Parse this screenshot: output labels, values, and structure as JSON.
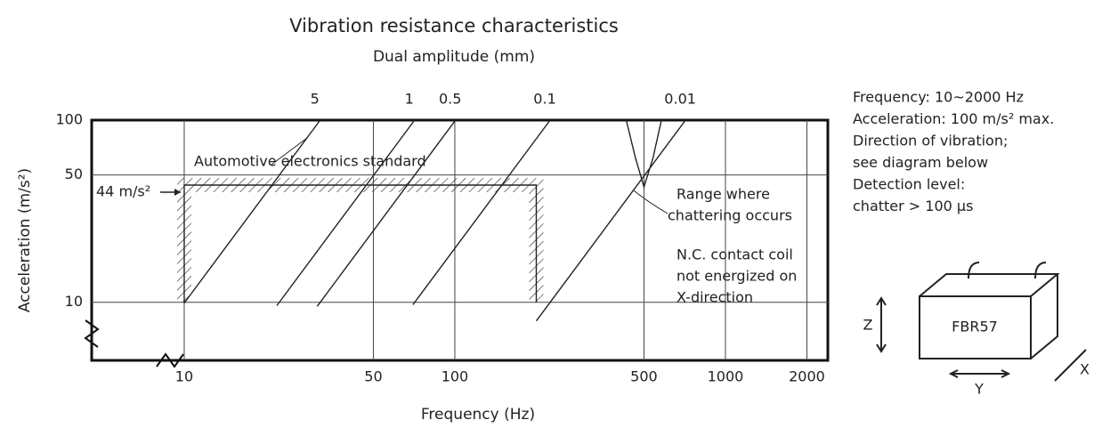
{
  "chart_data": {
    "type": "line",
    "title": "Vibration resistance characteristics",
    "subtitle": "Dual amplitude (mm)",
    "x_label": "Frequency (Hz)",
    "y_label": "Acceleration (m/s²)",
    "log_x": true,
    "log_y": true,
    "grid": true,
    "xlim": [
      4.55,
      2390
    ],
    "ylim": [
      4.8,
      100
    ],
    "xticks": [
      10,
      50,
      100,
      500,
      1000,
      2000
    ],
    "yticks": [
      10,
      50,
      100
    ],
    "series": [
      {
        "name": "5",
        "color": "#222",
        "x": [
          10,
          31.8
        ],
        "values": [
          9.9,
          100
        ]
      },
      {
        "name": "1",
        "color": "#222",
        "x": [
          22,
          71
        ],
        "values": [
          9.6,
          100
        ]
      },
      {
        "name": "0.5",
        "color": "#222",
        "x": [
          31,
          100.6
        ],
        "values": [
          9.5,
          100
        ]
      },
      {
        "name": "0.1",
        "color": "#222",
        "x": [
          70,
          225
        ],
        "values": [
          9.7,
          100
        ]
      },
      {
        "name": "0.01",
        "color": "#222",
        "x": [
          200,
          712
        ],
        "values": [
          7.9,
          100
        ]
      }
    ],
    "standard": {
      "name": "Automotive electronics standard",
      "x": [
        10,
        10,
        200,
        200
      ],
      "values": [
        10,
        44,
        44,
        10
      ],
      "level_label": "44 m/s²"
    },
    "chatter": {
      "x": [
        430,
        465,
        500,
        540,
        580
      ],
      "values": [
        100,
        62,
        43,
        62,
        100
      ],
      "label_lines": [
        "Range where",
        "chattering occurs"
      ]
    },
    "condition_lines": [
      "N.C. contact coil",
      "not energized on",
      "X-direction"
    ],
    "side_notes": [
      "Frequency: 10~2000 Hz",
      "Acceleration: 100 m/s² max.",
      "Direction of vibration;",
      "see diagram below",
      "Detection level:",
      "chatter > 100 μs"
    ],
    "diagram": {
      "part": "FBR57",
      "z": "Z",
      "y": "Y",
      "x": "X"
    }
  }
}
